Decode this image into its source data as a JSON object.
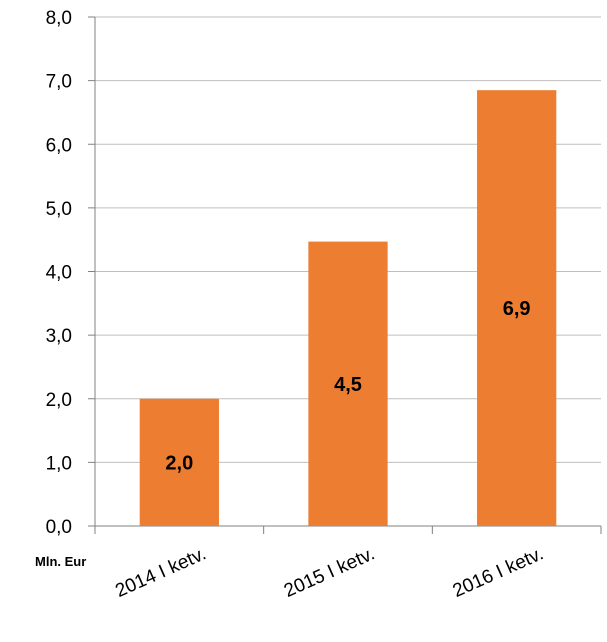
{
  "chart_data": {
    "type": "bar",
    "categories": [
      "2014 I ketv.",
      "2015 I ketv.",
      "2016 I ketv."
    ],
    "values": [
      2.0,
      4.5,
      6.9
    ],
    "bar_values": [
      2.0,
      4.47,
      6.85
    ],
    "data_labels": [
      "2,0",
      "4,5",
      "6,9"
    ],
    "y_ticks": [
      "0,0",
      "1,0",
      "2,0",
      "3,0",
      "4,0",
      "5,0",
      "6,0",
      "7,0",
      "8,0"
    ],
    "ylim": [
      0,
      8
    ],
    "unit_label": "Mln. Eur",
    "grid": true,
    "legend": "none",
    "bar_color": "#ED7D31",
    "grid_color": "#BFBFBF"
  }
}
